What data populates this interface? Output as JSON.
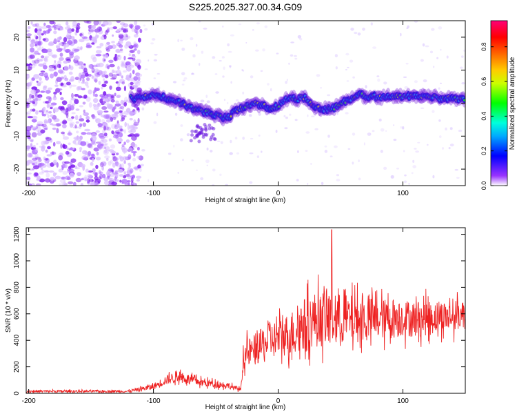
{
  "title": "S225.2025.327.00.34.G09",
  "chart_data": [
    {
      "type": "heatmap",
      "title": "S225.2025.327.00.34.G09",
      "xlabel": "Height of straight line (km)",
      "ylabel": "Frequency (Hz)",
      "xlim": [
        -202,
        150
      ],
      "ylim": [
        -25,
        25
      ],
      "xticks": [
        -200,
        -100,
        0,
        100
      ],
      "xtick_labels": [
        "-200",
        "-100",
        "0",
        "100"
      ],
      "yticks": [
        -20,
        -10,
        0,
        10,
        20
      ],
      "ytick_labels": [
        "-20",
        "-10",
        "0",
        "10",
        "20"
      ],
      "colorbar": {
        "label": "Normalized spectral amplitude",
        "range": [
          0,
          0.95
        ],
        "ticks": [
          0,
          0.2,
          0.4,
          0.6,
          0.8
        ],
        "tick_labels": [
          "0.0",
          "0.2",
          "0.4",
          "0.6",
          "0.8"
        ],
        "colors": [
          "#ffffff",
          "#8800ff",
          "#0000ff",
          "#00ffff",
          "#00ff00",
          "#ffff00",
          "#ff8800",
          "#ff0000",
          "#ff0088"
        ]
      },
      "noise_region": {
        "x": [
          -202,
          -110
        ],
        "y": [
          -25,
          25
        ]
      },
      "ridge": {
        "x": [
          -115,
          -100,
          -90,
          -80,
          -70,
          -60,
          -50,
          -45,
          -40,
          -35,
          -30,
          -20,
          -10,
          -5,
          0,
          5,
          10,
          15,
          20,
          25,
          30,
          40,
          45,
          50,
          60,
          65,
          70,
          80,
          90,
          100,
          110,
          120,
          130,
          140,
          150
        ],
        "y": [
          1.5,
          2.5,
          1.5,
          0.5,
          -1.5,
          -2.5,
          -3.5,
          -4.5,
          -4.5,
          -2.5,
          -1.5,
          0,
          -1,
          -1.5,
          -1,
          1,
          2,
          1,
          2,
          0.5,
          -1.5,
          -2,
          -1.5,
          0,
          1.5,
          3,
          2,
          2,
          2,
          2,
          2,
          2,
          1.5,
          1.5,
          1
        ]
      },
      "secondary_feature": {
        "x": [
          -60,
          -65,
          -55
        ],
        "y": [
          -8,
          -10,
          -9
        ]
      }
    },
    {
      "type": "line",
      "xlabel": "Height of straight line (km)",
      "ylabel": "SNR (10 * v/v)",
      "xlim": [
        -202,
        150
      ],
      "ylim": [
        0,
        1250
      ],
      "xticks": [
        -200,
        -100,
        0,
        100
      ],
      "xtick_labels": [
        "-200",
        "-100",
        "0",
        "100"
      ],
      "yticks": [
        0,
        200,
        400,
        600,
        800,
        1000,
        1200
      ],
      "ytick_labels": [
        "0",
        "200",
        "400",
        "600",
        "800",
        "1000",
        "1200"
      ],
      "series": [
        {
          "name": "SNR",
          "color": "#ee2222",
          "envelope_x": [
            -202,
            -120,
            -100,
            -90,
            -80,
            -70,
            -60,
            -50,
            -40,
            -35,
            -30,
            -28,
            -25,
            -20,
            -10,
            0,
            10,
            20,
            30,
            40,
            50,
            60,
            70,
            80,
            90,
            100,
            110,
            120,
            130,
            140,
            150
          ],
          "envelope_mean": [
            15,
            15,
            50,
            100,
            130,
            100,
            80,
            70,
            60,
            40,
            30,
            250,
            300,
            320,
            380,
            420,
            450,
            520,
            560,
            560,
            560,
            560,
            560,
            560,
            560,
            570,
            560,
            570,
            580,
            580,
            600
          ],
          "envelope_spread": [
            15,
            15,
            40,
            60,
            70,
            60,
            50,
            45,
            40,
            30,
            20,
            120,
            180,
            200,
            220,
            240,
            280,
            330,
            350,
            350,
            320,
            300,
            280,
            260,
            250,
            240,
            230,
            220,
            200,
            200,
            180
          ],
          "peak": {
            "x": 43,
            "y": 1235
          }
        }
      ]
    }
  ]
}
